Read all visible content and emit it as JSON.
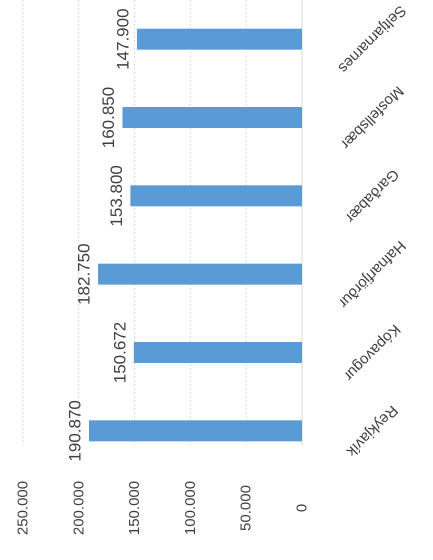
{
  "chart_data": {
    "type": "bar",
    "orientation": "horizontal",
    "image_rotation": "rotated 90 degrees clockwise (chart printed sideways)",
    "categories": [
      "Reykjavík",
      "Kópavogur",
      "Hafnarfjörður",
      "Garðabær",
      "Mosfellsbær",
      "Seltjarnarnes"
    ],
    "values": [
      190870,
      150672,
      182750,
      153800,
      160850,
      147900
    ],
    "data_labels": [
      "190.870",
      "150.672",
      "182.750",
      "153.800",
      "160.850",
      "147.900"
    ],
    "tick_values": [
      0,
      50000,
      100000,
      150000,
      200000,
      250000
    ],
    "tick_labels": [
      "0",
      "50.000",
      "100.000",
      "150.000",
      "200.000",
      "250.000"
    ],
    "xlim": [
      0,
      250000
    ],
    "grid": true,
    "legend": "none",
    "bar_color": "#5b9bd5",
    "grid_color": "#d9d9d9",
    "text_color": "#404040"
  }
}
